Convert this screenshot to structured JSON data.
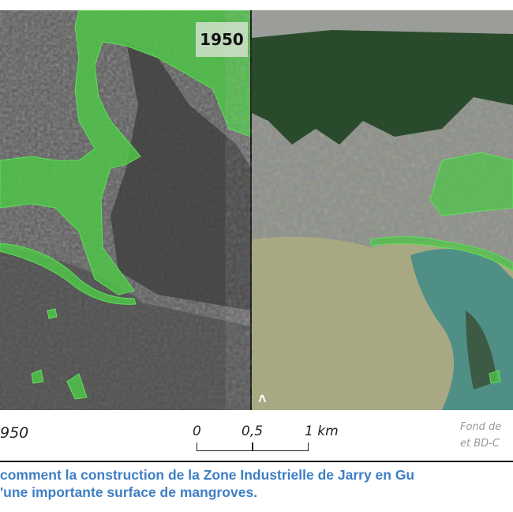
{
  "map_left": {
    "year_label": "1950",
    "mangrove_color": "#4fc449"
  },
  "map_right": {
    "north_arrow": "north-arrow-icon"
  },
  "legend": {
    "year": "950",
    "scale": {
      "tick_0": "0",
      "tick_mid": "0,5",
      "tick_end": "1 km"
    },
    "source_line1": "Fond de",
    "source_line2": "et BD-C"
  },
  "caption": {
    "line1": "comment la construction de la Zone Industrielle de Jarry en Gu",
    "line2": "'une importante surface de mangroves."
  }
}
